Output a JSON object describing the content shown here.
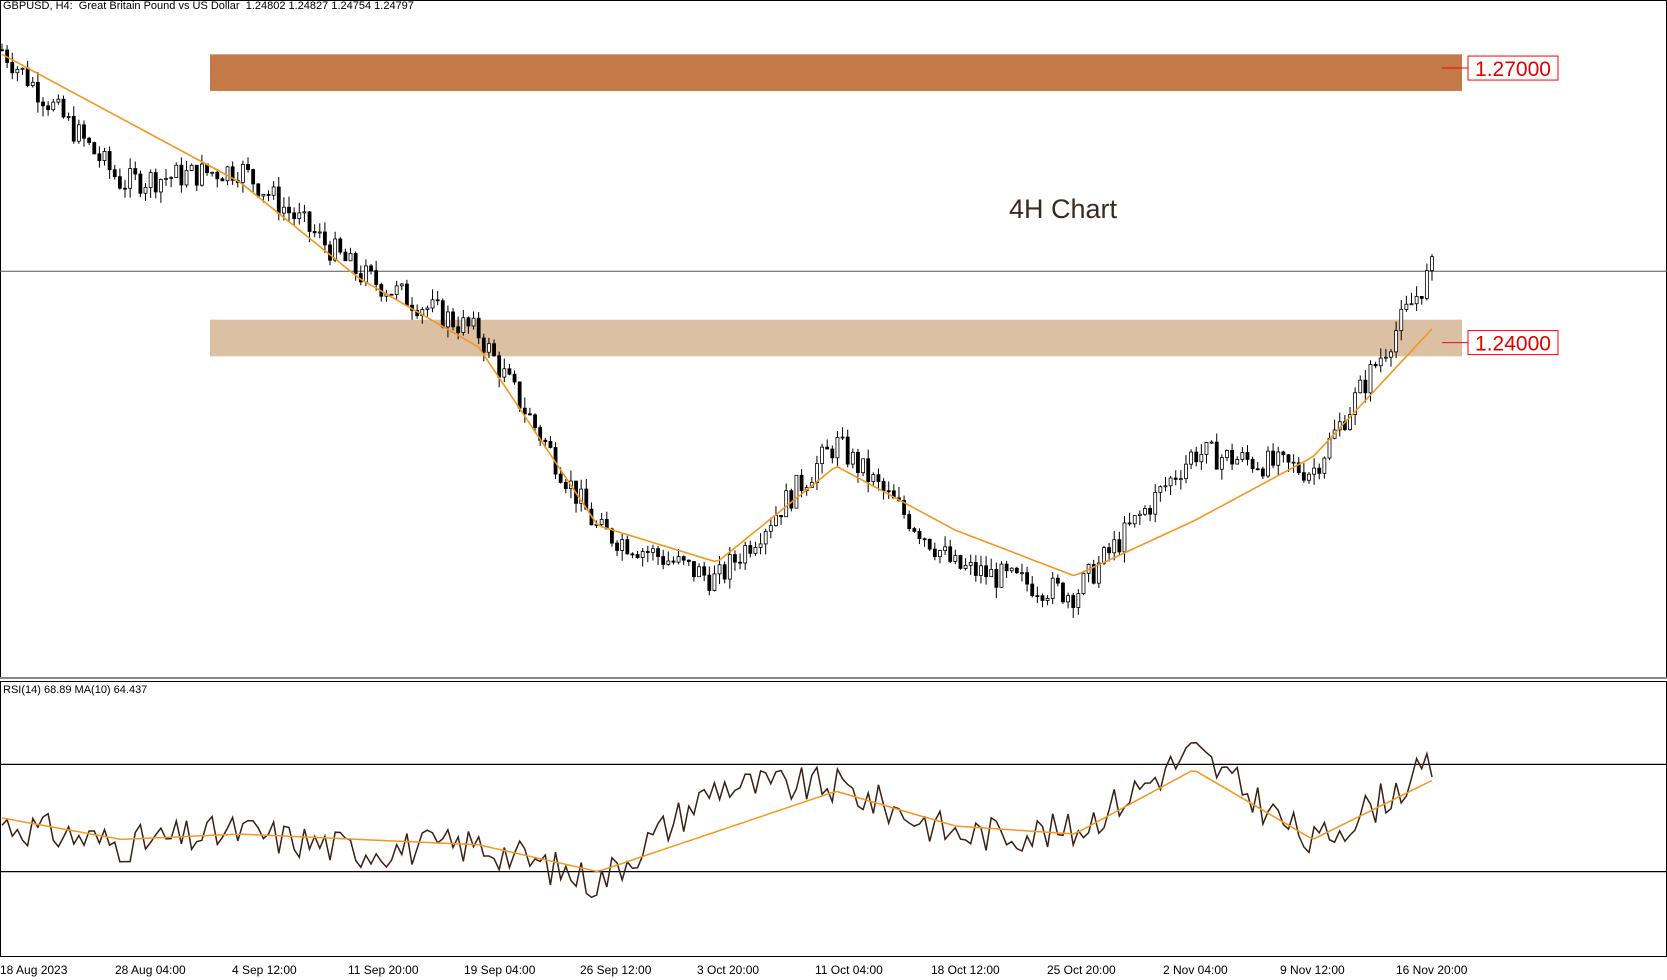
{
  "header": {
    "symbol_line": "GBPUSD, H4:  Great Britain Pound vs US Dollar  1.24802 1.24827 1.24754 1.24797"
  },
  "annotation": {
    "title": "4H Chart"
  },
  "levels": {
    "upper": {
      "label": "1.27000",
      "value": 1.27,
      "zone": [
        1.2675,
        1.2715
      ],
      "color": "#c47a48"
    },
    "lower": {
      "label": "1.24000",
      "value": 1.24,
      "zone": [
        1.2385,
        1.2425
      ],
      "color": "#dbc0a4"
    },
    "current": {
      "value": 1.2478
    }
  },
  "rsi_panel": {
    "label": "RSI(14) 68.89 MA(10) 64.437",
    "upper_line": 70,
    "lower_line": 30
  },
  "colors": {
    "ma": "#f5961e",
    "candle": "#000000",
    "rsi": "#3a2012",
    "level_box": "#ff0000"
  },
  "x_axis_labels": [
    "18 Aug 2023",
    "28 Aug 04:00",
    "4 Sep 12:00",
    "11 Sep 20:00",
    "19 Sep 04:00",
    "26 Sep 12:00",
    "3 Oct 20:00",
    "11 Oct 04:00",
    "18 Oct 12:00",
    "25 Oct 20:00",
    "2 Nov 04:00",
    "9 Nov 12:00",
    "16 Nov 20:00"
  ],
  "chart_data": [
    {
      "type": "candlestick",
      "title": "",
      "ylim": [
        1.204,
        1.277
      ],
      "xlabel": "",
      "ylabel": "",
      "series": [
        {
          "name": "GBPUSD close",
          "x": [
            "18 Aug 2023",
            "28 Aug 04:00",
            "4 Sep 12:00",
            "11 Sep 20:00",
            "19 Sep 04:00",
            "26 Sep 12:00",
            "3 Oct 20:00",
            "11 Oct 04:00",
            "18 Oct 12:00",
            "25 Oct 20:00",
            "2 Nov 04:00",
            "9 Nov 12:00",
            "16 Nov 20:00"
          ],
          "values": [
            1.272,
            1.2575,
            1.259,
            1.2475,
            1.241,
            1.2195,
            1.214,
            1.229,
            1.2155,
            1.2125,
            1.228,
            1.226,
            1.248
          ]
        },
        {
          "name": "MA",
          "x": [
            "18 Aug 2023",
            "28 Aug 04:00",
            "4 Sep 12:00",
            "11 Sep 20:00",
            "19 Sep 04:00",
            "26 Sep 12:00",
            "3 Oct 20:00",
            "11 Oct 04:00",
            "18 Oct 12:00",
            "25 Oct 20:00",
            "2 Nov 04:00",
            "9 Nov 12:00",
            "16 Nov 20:00"
          ],
          "values": [
            1.2715,
            1.2645,
            1.2575,
            1.247,
            1.2395,
            1.22,
            1.216,
            1.2265,
            1.2195,
            1.2145,
            1.2205,
            1.2275,
            1.2415
          ]
        }
      ]
    },
    {
      "type": "line",
      "title": "",
      "ylim": [
        0,
        100
      ],
      "xlabel": "",
      "ylabel": "",
      "series": [
        {
          "name": "RSI(14)",
          "x": [
            "18 Aug 2023",
            "28 Aug 04:00",
            "4 Sep 12:00",
            "11 Sep 20:00",
            "19 Sep 04:00",
            "26 Sep 12:00",
            "3 Oct 20:00",
            "11 Oct 04:00",
            "18 Oct 12:00",
            "25 Oct 20:00",
            "2 Nov 04:00",
            "9 Nov 12:00",
            "16 Nov 20:00"
          ],
          "values": [
            48,
            40,
            45,
            38,
            40,
            26,
            62,
            62,
            44,
            45,
            75,
            40,
            69
          ]
        },
        {
          "name": "MA(10)",
          "x": [
            "18 Aug 2023",
            "28 Aug 04:00",
            "4 Sep 12:00",
            "11 Sep 20:00",
            "19 Sep 04:00",
            "26 Sep 12:00",
            "3 Oct 20:00",
            "11 Oct 04:00",
            "18 Oct 12:00",
            "25 Oct 20:00",
            "2 Nov 04:00",
            "9 Nov 12:00",
            "16 Nov 20:00"
          ],
          "values": [
            50,
            42,
            44,
            42,
            40,
            30,
            45,
            60,
            47,
            44,
            68,
            42,
            64
          ]
        }
      ]
    }
  ]
}
